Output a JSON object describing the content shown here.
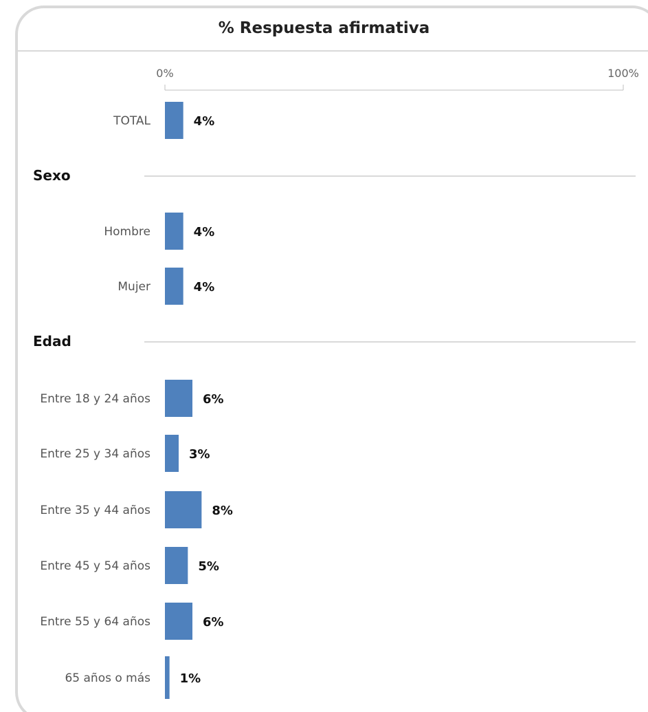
{
  "header": {
    "title": "% Respuesta afirmativa"
  },
  "colors": {
    "bar": "#4f81bd",
    "rule": "#d9d9d9",
    "border": "#d9d9d9"
  },
  "chart_data": {
    "type": "bar",
    "orientation": "horizontal",
    "title": "% Respuesta afirmativa",
    "xlim": [
      0,
      100
    ],
    "x_tick_labels": [
      "0%",
      "100%"
    ],
    "grid": false,
    "value_suffix": "%",
    "rows": [
      {
        "kind": "bar",
        "label": "TOTAL",
        "value": 4
      },
      {
        "kind": "group",
        "label": "Sexo"
      },
      {
        "kind": "bar",
        "label": "Hombre",
        "value": 4
      },
      {
        "kind": "bar",
        "label": "Mujer",
        "value": 4
      },
      {
        "kind": "group",
        "label": "Edad"
      },
      {
        "kind": "bar",
        "label": "Entre 18 y 24 años",
        "value": 6
      },
      {
        "kind": "bar",
        "label": "Entre 25 y 34 años",
        "value": 3
      },
      {
        "kind": "bar",
        "label": "Entre 35 y 44 años",
        "value": 8
      },
      {
        "kind": "bar",
        "label": "Entre 45 y 54 años",
        "value": 5
      },
      {
        "kind": "bar",
        "label": "Entre 55 y 64 años",
        "value": 6
      },
      {
        "kind": "bar",
        "label": "65 años o más",
        "value": 1
      }
    ]
  }
}
